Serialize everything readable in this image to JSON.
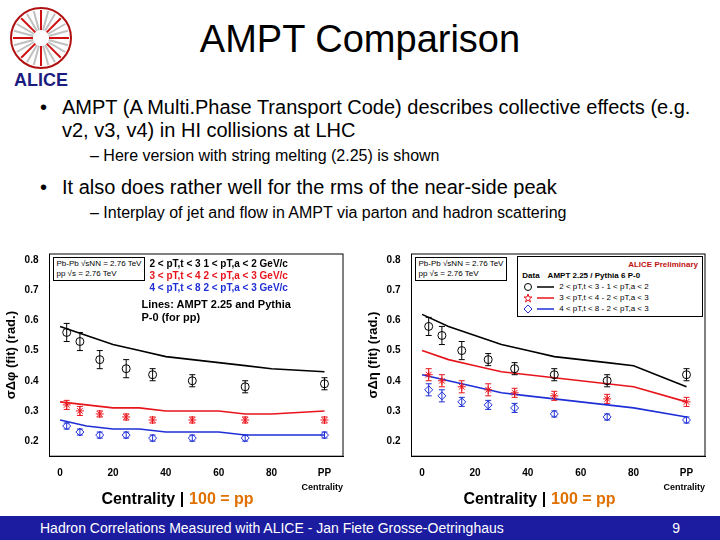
{
  "slide": {
    "logo": "ALICE",
    "title": "AMPT Comparison",
    "bullets": [
      {
        "text": "AMPT (A Multi.Phase Transport Code) describes collective effects (e.g. v2, v3, v4) in HI collisions at LHC",
        "sub": "– Here version with string melting (2.25) is shown"
      },
      {
        "text": "It also does rather well for the rms of the near-side peak",
        "sub": "– Interplay of jet and flow in AMPT via parton and hadron scattering"
      }
    ],
    "footer": "Hadron Correlations Measured with ALICE - Jan Fiete Grosse-Oetringhaus",
    "page": "9"
  },
  "chart_data": [
    {
      "type": "scatter",
      "y_label": "σΔφ (fit) (rad.)",
      "x_label": "Centrality",
      "caption": "Centrality |",
      "caption_highlight": "100 = pp",
      "xlim": [
        -4,
        107
      ],
      "xticks": [
        0,
        20,
        40,
        60,
        80,
        {
          "value": 100,
          "label": "PP"
        }
      ],
      "ylim": [
        0.15,
        0.82
      ],
      "yticks": [
        0.2,
        0.3,
        0.4,
        0.5,
        0.6,
        0.7,
        0.8
      ],
      "grid": false,
      "energy_labels": [
        "Pb-Pb √sNN = 2.76 TeV",
        "pp √s = 2.76 TeV"
      ],
      "annotations": [
        {
          "text": "2 < pT,t < 3    1 < pT,a < 2 GeV/c",
          "color": "#000000"
        },
        {
          "text": "3 < pT,t < 4    2 < pT,a < 3 GeV/c",
          "color": "#e8141c"
        },
        {
          "text": "4 < pT,t < 8    2 < pT,a < 3 GeV/c",
          "color": "#1f2fd6"
        }
      ],
      "note": "Lines: AMPT 2.25 and Pythia P-0 (for pp)",
      "series": [
        {
          "type": "scatter",
          "marker": "circle",
          "color": "#000000",
          "x": [
            2.5,
            7.5,
            15,
            25,
            35,
            50,
            70,
            100
          ],
          "values": [
            0.56,
            0.53,
            0.47,
            0.44,
            0.42,
            0.4,
            0.38,
            0.39
          ],
          "errors": [
            0.03,
            0.03,
            0.03,
            0.03,
            0.02,
            0.02,
            0.02,
            0.02
          ]
        },
        {
          "type": "scatter",
          "marker": "star",
          "color": "#e8141c",
          "x": [
            2.5,
            7.5,
            15,
            25,
            35,
            50,
            70,
            100
          ],
          "values": [
            0.32,
            0.3,
            0.29,
            0.28,
            0.27,
            0.27,
            0.27,
            0.27
          ],
          "errors": [
            0.015,
            0.015,
            0.01,
            0.01,
            0.01,
            0.01,
            0.01,
            0.01
          ]
        },
        {
          "type": "scatter",
          "marker": "diamond",
          "color": "#1f2fd6",
          "x": [
            2.5,
            7.5,
            15,
            25,
            35,
            50,
            70,
            100
          ],
          "values": [
            0.25,
            0.23,
            0.22,
            0.22,
            0.21,
            0.21,
            0.21,
            0.22
          ],
          "errors": [
            0.01,
            0.01,
            0.01,
            0.01,
            0.01,
            0.01,
            0.01,
            0.01
          ]
        },
        {
          "type": "line",
          "line_style": "solid",
          "color": "#000000",
          "x": [
            0,
            10,
            20,
            30,
            40,
            50,
            60,
            70,
            80,
            100
          ],
          "values": [
            0.58,
            0.55,
            0.52,
            0.5,
            0.48,
            0.47,
            0.46,
            0.45,
            0.44,
            0.43
          ]
        },
        {
          "type": "line",
          "line_style": "solid",
          "color": "#e8141c",
          "x": [
            0,
            10,
            20,
            30,
            40,
            50,
            60,
            70,
            80,
            100
          ],
          "values": [
            0.33,
            0.32,
            0.31,
            0.31,
            0.3,
            0.3,
            0.3,
            0.29,
            0.29,
            0.3
          ]
        },
        {
          "type": "line",
          "line_style": "solid",
          "color": "#1f2fd6",
          "x": [
            0,
            10,
            20,
            30,
            40,
            50,
            60,
            70,
            80,
            100
          ],
          "values": [
            0.27,
            0.25,
            0.24,
            0.24,
            0.23,
            0.23,
            0.23,
            0.22,
            0.22,
            0.22
          ]
        }
      ]
    },
    {
      "type": "scatter",
      "y_label": "σΔη (fit) (rad.)",
      "x_label": "Centrality",
      "caption": "Centrality |",
      "caption_highlight": "100 = pp",
      "xlim": [
        -4,
        107
      ],
      "xticks": [
        0,
        20,
        40,
        60,
        80,
        {
          "value": 100,
          "label": "PP"
        }
      ],
      "ylim": [
        0.15,
        0.82
      ],
      "yticks": [
        0.2,
        0.3,
        0.4,
        0.5,
        0.6,
        0.7,
        0.8
      ],
      "grid": false,
      "energy_labels": [
        "Pb-Pb √sNN = 2.76 TeV",
        "pp √s = 2.76 TeV"
      ],
      "legend": "upper right",
      "badge": "ALICE Preliminary",
      "legend_headers": [
        "Data",
        "AMPT 2.25 / Pythia 6 P-0"
      ],
      "series": [
        {
          "name": "2 < pT,t < 3 - 1 < pT,a < 2",
          "type": "scatter",
          "marker": "circle",
          "color": "#000000",
          "x": [
            2.5,
            7.5,
            15,
            25,
            35,
            50,
            70,
            100
          ],
          "values": [
            0.58,
            0.55,
            0.5,
            0.47,
            0.44,
            0.42,
            0.4,
            0.42
          ],
          "errors": [
            0.03,
            0.03,
            0.03,
            0.02,
            0.02,
            0.02,
            0.02,
            0.02
          ]
        },
        {
          "name": "3 < pT,t < 4 - 2 < pT,a < 3",
          "type": "scatter",
          "marker": "star",
          "color": "#e8141c",
          "x": [
            2.5,
            7.5,
            15,
            25,
            35,
            50,
            70,
            100
          ],
          "values": [
            0.42,
            0.4,
            0.38,
            0.37,
            0.36,
            0.35,
            0.34,
            0.33
          ],
          "errors": [
            0.02,
            0.02,
            0.02,
            0.02,
            0.015,
            0.015,
            0.015,
            0.015
          ]
        },
        {
          "name": "4 < pT,t < 8 - 2 < pT,a < 3",
          "type": "scatter",
          "marker": "diamond",
          "color": "#1f2fd6",
          "x": [
            2.5,
            7.5,
            15,
            25,
            35,
            50,
            70,
            100
          ],
          "values": [
            0.37,
            0.35,
            0.33,
            0.32,
            0.31,
            0.29,
            0.28,
            0.27
          ],
          "errors": [
            0.02,
            0.02,
            0.015,
            0.015,
            0.015,
            0.01,
            0.01,
            0.01
          ]
        },
        {
          "name": "2 < pT,t < 3 - 1 < pT,a < 2",
          "type": "line",
          "line_style": "solid",
          "color": "#000000",
          "x": [
            0,
            10,
            20,
            30,
            40,
            50,
            60,
            70,
            80,
            100
          ],
          "values": [
            0.62,
            0.58,
            0.55,
            0.52,
            0.5,
            0.48,
            0.47,
            0.46,
            0.45,
            0.38
          ]
        },
        {
          "name": "3 < pT,t < 4 - 2 < pT,a < 3",
          "type": "line",
          "line_style": "solid",
          "color": "#e8141c",
          "x": [
            0,
            10,
            20,
            30,
            40,
            50,
            60,
            70,
            80,
            100
          ],
          "values": [
            0.5,
            0.47,
            0.45,
            0.43,
            0.42,
            0.41,
            0.4,
            0.39,
            0.38,
            0.33
          ]
        },
        {
          "name": "4 < pT,t < 8 - 2 < pT,a < 3",
          "type": "line",
          "line_style": "solid",
          "color": "#1f2fd6",
          "x": [
            0,
            10,
            20,
            30,
            40,
            50,
            60,
            70,
            80,
            100
          ],
          "values": [
            0.42,
            0.4,
            0.38,
            0.36,
            0.35,
            0.34,
            0.33,
            0.32,
            0.31,
            0.28
          ]
        }
      ]
    }
  ]
}
